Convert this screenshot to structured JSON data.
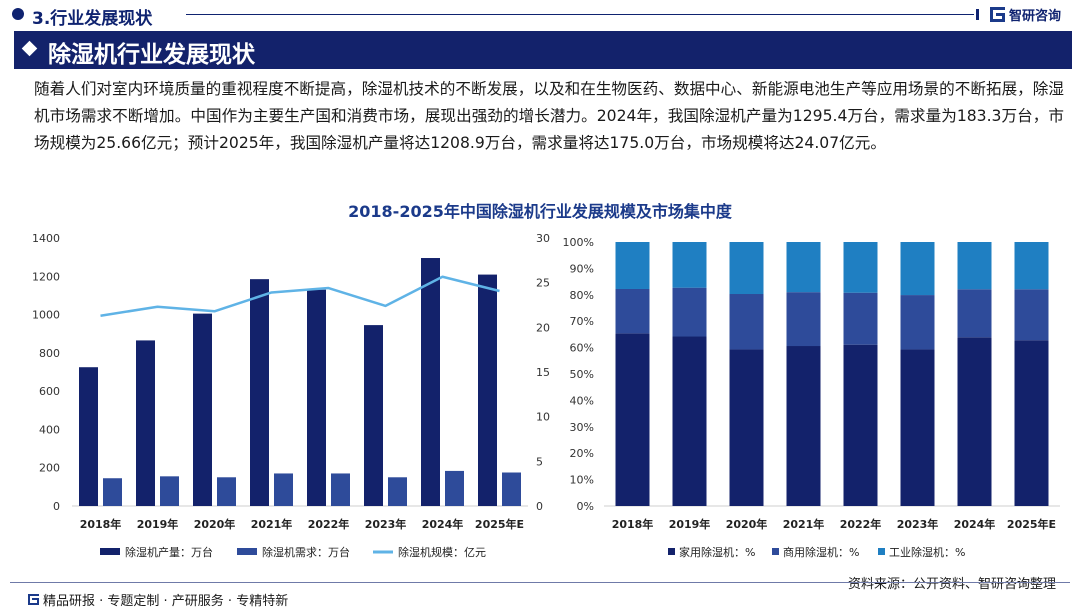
{
  "header": {
    "section": "3.行业发展现状",
    "brand": "智研咨询"
  },
  "title": "除湿机行业发展现状",
  "body": "随着人们对室内环境质量的重视程度不断提高，除湿机技术的不断发展，以及和在生物医药、数据中心、新能源电池生产等应用场景的不断拓展，除湿机市场需求不断增加。中国作为主要生产国和消费市场，展现出强劲的增长潜力。2024年，我国除湿机产量为1295.4万台，需求量为183.3万台，市场规模为25.66亿元；预计2025年，我国除湿机产量将达1208.9万台，需求量将达175.0万台，市场规模将达24.07亿元。",
  "chart_title": "2018-2025年中国除湿机行业发展规模及市场集中度",
  "colors": {
    "navy": "#13226b",
    "mid_blue": "#2e4b9a",
    "light_blue": "#5fb3e6",
    "sky_blue": "#1f7fc2"
  },
  "chart_data": [
    {
      "type": "bar",
      "title": "",
      "categories": [
        "2018年",
        "2019年",
        "2020年",
        "2021年",
        "2022年",
        "2023年",
        "2024年",
        "2025年E"
      ],
      "series": [
        {
          "name": "除湿机产量：万台",
          "axis": "left",
          "kind": "bar",
          "color": "#13226b",
          "values": [
            725,
            865,
            1005,
            1185,
            1130,
            945,
            1295.4,
            1208.9
          ]
        },
        {
          "name": "除湿机需求：万台",
          "axis": "left",
          "kind": "bar",
          "color": "#2e4b9a",
          "values": [
            145,
            155,
            150,
            170,
            170,
            150,
            183.3,
            175.0
          ]
        },
        {
          "name": "除湿机规模：亿元",
          "axis": "right",
          "kind": "line",
          "color": "#5fb3e6",
          "values": [
            21.3,
            22.3,
            21.8,
            23.9,
            24.4,
            22.4,
            25.66,
            24.07
          ]
        }
      ],
      "ylim": [
        0,
        1400
      ],
      "yticks": [
        0,
        200,
        400,
        600,
        800,
        1000,
        1200,
        1400
      ],
      "y2lim": [
        0,
        30
      ],
      "y2ticks": [
        0,
        5,
        10,
        15,
        20,
        25,
        30
      ],
      "legend": "bottom"
    },
    {
      "type": "bar",
      "stacked": true,
      "categories": [
        "2018年",
        "2019年",
        "2020年",
        "2021年",
        "2022年",
        "2023年",
        "2024年",
        "2025年E"
      ],
      "series": [
        {
          "name": "家用除湿机：%",
          "color": "#13226b",
          "values": [
            65.4,
            64.2,
            59.3,
            60.6,
            61.1,
            59.3,
            63.9,
            62.8
          ]
        },
        {
          "name": "商用除湿机：%",
          "color": "#2e4b9a",
          "values": [
            16.8,
            18.5,
            21.0,
            20.4,
            19.7,
            20.6,
            18.2,
            19.3
          ]
        },
        {
          "name": "工业除湿机：%",
          "color": "#1f7fc2",
          "values": [
            17.8,
            17.3,
            19.7,
            19.0,
            19.2,
            20.1,
            17.9,
            17.9
          ]
        }
      ],
      "ylim": [
        0,
        100
      ],
      "yticks": [
        "0%",
        "10%",
        "20%",
        "30%",
        "40%",
        "50%",
        "60%",
        "70%",
        "80%",
        "90%",
        "100%"
      ],
      "legend": "bottom"
    }
  ],
  "footer": {
    "tagline": "精品研报 · 专题定制 · 产研服务 · 专精特新",
    "source": "资料来源：公开资料、智研咨询整理"
  }
}
